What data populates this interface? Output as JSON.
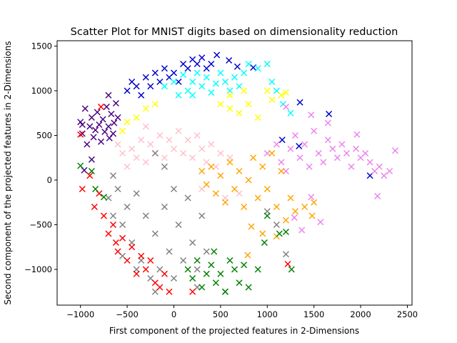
{
  "chart_data": {
    "type": "scatter",
    "title": "Scatter Plot for MNIST digits based on dimensionality reduction",
    "xlabel": "First component of the projected features in 2-Dimensions",
    "ylabel": "Second component of the projected features in 2-Dimensions",
    "xlim": [
      -1250,
      2550
    ],
    "ylim": [
      -1400,
      1560
    ],
    "xticks": [
      -1000,
      -500,
      0,
      500,
      1000,
      1500,
      2000,
      2500
    ],
    "xtick_labels": [
      "−1000",
      "−500",
      "0",
      "500",
      "1000",
      "1500",
      "2000",
      "2500"
    ],
    "yticks": [
      -1000,
      -500,
      0,
      500,
      1000,
      1500
    ],
    "ytick_labels": [
      "−1000",
      "−500",
      "0",
      "500",
      "1000",
      "1500"
    ],
    "grid": false,
    "legend": "none",
    "marker": "x",
    "series": [
      {
        "color": "#4b0082",
        "points": [
          [
            -1000,
            650
          ],
          [
            -980,
            520
          ],
          [
            -950,
            800
          ],
          [
            -930,
            400
          ],
          [
            -900,
            600
          ],
          [
            -880,
            700
          ],
          [
            -860,
            480
          ],
          [
            -840,
            560
          ],
          [
            -820,
            760
          ],
          [
            -800,
            620
          ],
          [
            -780,
            430
          ],
          [
            -760,
            680
          ],
          [
            -740,
            540
          ],
          [
            -720,
            820
          ],
          [
            -700,
            600
          ],
          [
            -690,
            470
          ],
          [
            -670,
            740
          ],
          [
            -650,
            520
          ],
          [
            -640,
            640
          ],
          [
            -620,
            860
          ],
          [
            -600,
            700
          ],
          [
            -960,
            110
          ],
          [
            -980,
            620
          ],
          [
            -880,
            230
          ],
          [
            -700,
            950
          ]
        ]
      },
      {
        "color": "#0000cd",
        "points": [
          [
            -500,
            1000
          ],
          [
            -450,
            1100
          ],
          [
            -400,
            1050
          ],
          [
            -350,
            950
          ],
          [
            -300,
            1150
          ],
          [
            -250,
            1050
          ],
          [
            -200,
            1200
          ],
          [
            -150,
            1100
          ],
          [
            -100,
            1250
          ],
          [
            -50,
            1150
          ],
          [
            0,
            1200
          ],
          [
            50,
            1100
          ],
          [
            100,
            1300
          ],
          [
            150,
            1250
          ],
          [
            200,
            1350
          ],
          [
            250,
            1300
          ],
          [
            300,
            1370
          ],
          [
            350,
            1250
          ],
          [
            400,
            1300
          ],
          [
            460,
            1400
          ],
          [
            590,
            1340
          ],
          [
            680,
            1270
          ],
          [
            850,
            1260
          ],
          [
            1350,
            870
          ],
          [
            1660,
            740
          ],
          [
            2100,
            50
          ],
          [
            1340,
            380
          ],
          [
            1160,
            450
          ]
        ]
      },
      {
        "color": "#00ffff",
        "points": [
          [
            -100,
            1050
          ],
          [
            0,
            1100
          ],
          [
            100,
            1180
          ],
          [
            150,
            1000
          ],
          [
            200,
            1100
          ],
          [
            250,
            1200
          ],
          [
            300,
            1050
          ],
          [
            350,
            1150
          ],
          [
            400,
            980
          ],
          [
            450,
            1080
          ],
          [
            500,
            1200
          ],
          [
            550,
            1100
          ],
          [
            600,
            1000
          ],
          [
            650,
            1150
          ],
          [
            700,
            1050
          ],
          [
            750,
            1200
          ],
          [
            800,
            1300
          ],
          [
            900,
            1250
          ],
          [
            1000,
            1300
          ],
          [
            1050,
            1100
          ],
          [
            1100,
            1000
          ],
          [
            1170,
            850
          ],
          [
            1250,
            750
          ],
          [
            200,
            950
          ],
          [
            50,
            950
          ]
        ]
      },
      {
        "color": "#ffff00",
        "points": [
          [
            -550,
            550
          ],
          [
            -500,
            650
          ],
          [
            -400,
            700
          ],
          [
            -300,
            800
          ],
          [
            -200,
            850
          ],
          [
            500,
            850
          ],
          [
            600,
            800
          ],
          [
            700,
            750
          ],
          [
            800,
            850
          ],
          [
            900,
            700
          ],
          [
            1000,
            1000
          ],
          [
            1050,
            900
          ],
          [
            1150,
            950
          ],
          [
            1200,
            980
          ],
          [
            750,
            1000
          ],
          [
            600,
            950
          ]
        ]
      },
      {
        "color": "#ee82ee",
        "points": [
          [
            1000,
            300
          ],
          [
            1100,
            400
          ],
          [
            1150,
            200
          ],
          [
            1200,
            100
          ],
          [
            1250,
            350
          ],
          [
            1300,
            500
          ],
          [
            1350,
            250
          ],
          [
            1400,
            400
          ],
          [
            1450,
            150
          ],
          [
            1500,
            550
          ],
          [
            1550,
            300
          ],
          [
            1600,
            200
          ],
          [
            1650,
            450
          ],
          [
            1700,
            350
          ],
          [
            1750,
            250
          ],
          [
            1800,
            400
          ],
          [
            1850,
            300
          ],
          [
            1900,
            150
          ],
          [
            1950,
            350
          ],
          [
            2000,
            250
          ],
          [
            2050,
            300
          ],
          [
            2100,
            200
          ],
          [
            2150,
            100
          ],
          [
            2200,
            150
          ],
          [
            2250,
            50
          ],
          [
            2370,
            330
          ],
          [
            2310,
            100
          ],
          [
            2180,
            -180
          ],
          [
            1470,
            -190
          ],
          [
            1370,
            -560
          ],
          [
            1570,
            -470
          ],
          [
            1290,
            -420
          ],
          [
            1650,
            640
          ],
          [
            1960,
            510
          ],
          [
            1470,
            730
          ],
          [
            1200,
            820
          ]
        ]
      },
      {
        "color": "#ffc0cb",
        "points": [
          [
            -600,
            400
          ],
          [
            -550,
            300
          ],
          [
            -500,
            150
          ],
          [
            -450,
            350
          ],
          [
            -400,
            250
          ],
          [
            -350,
            450
          ],
          [
            -300,
            200
          ],
          [
            -250,
            400
          ],
          [
            -200,
            300
          ],
          [
            -150,
            500
          ],
          [
            -100,
            250
          ],
          [
            -50,
            450
          ],
          [
            0,
            350
          ],
          [
            50,
            550
          ],
          [
            100,
            300
          ],
          [
            150,
            450
          ],
          [
            200,
            250
          ],
          [
            250,
            500
          ],
          [
            300,
            350
          ],
          [
            350,
            200
          ],
          [
            400,
            400
          ],
          [
            450,
            150
          ],
          [
            500,
            300
          ],
          [
            600,
            250
          ],
          [
            700,
            -150
          ],
          [
            550,
            -200
          ],
          [
            300,
            -100
          ],
          [
            -300,
            600
          ]
        ]
      },
      {
        "color": "#ffa500",
        "points": [
          [
            300,
            100
          ],
          [
            350,
            -50
          ],
          [
            400,
            150
          ],
          [
            450,
            -150
          ],
          [
            500,
            50
          ],
          [
            550,
            -250
          ],
          [
            600,
            200
          ],
          [
            650,
            -100
          ],
          [
            700,
            100
          ],
          [
            750,
            -300
          ],
          [
            800,
            0
          ],
          [
            850,
            250
          ],
          [
            900,
            -200
          ],
          [
            950,
            150
          ],
          [
            1000,
            -100
          ],
          [
            1050,
            300
          ],
          [
            1100,
            -300
          ],
          [
            1150,
            100
          ],
          [
            1200,
            -450
          ],
          [
            1250,
            -200
          ],
          [
            1300,
            -350
          ],
          [
            1400,
            -300
          ],
          [
            1480,
            -400
          ],
          [
            1500,
            -250
          ],
          [
            950,
            -600
          ],
          [
            1100,
            -630
          ],
          [
            790,
            -840
          ],
          [
            830,
            -520
          ]
        ]
      },
      {
        "color": "#808080",
        "points": [
          [
            -700,
            -200
          ],
          [
            -650,
            -400
          ],
          [
            -600,
            -100
          ],
          [
            -550,
            -500
          ],
          [
            -500,
            -300
          ],
          [
            -450,
            -700
          ],
          [
            -400,
            -150
          ],
          [
            -350,
            -900
          ],
          [
            -300,
            -400
          ],
          [
            -250,
            -1100
          ],
          [
            -200,
            -600
          ],
          [
            -150,
            -1000
          ],
          [
            -100,
            -300
          ],
          [
            -50,
            -800
          ],
          [
            0,
            -1100
          ],
          [
            50,
            -500
          ],
          [
            100,
            -900
          ],
          [
            150,
            -200
          ],
          [
            200,
            -700
          ],
          [
            250,
            -1000
          ],
          [
            300,
            -400
          ],
          [
            350,
            -800
          ],
          [
            -400,
            -1000
          ],
          [
            -550,
            -850
          ],
          [
            -200,
            -1250
          ],
          [
            250,
            -1200
          ],
          [
            1000,
            -350
          ],
          [
            1100,
            -500
          ],
          [
            1200,
            -830
          ],
          [
            -200,
            300
          ],
          [
            -100,
            150
          ],
          [
            0,
            -100
          ],
          [
            -650,
            50
          ]
        ]
      },
      {
        "color": "#ff0000",
        "points": [
          [
            -980,
            -100
          ],
          [
            -900,
            50
          ],
          [
            -850,
            -300
          ],
          [
            -800,
            -150
          ],
          [
            -750,
            -400
          ],
          [
            -700,
            -600
          ],
          [
            -650,
            -500
          ],
          [
            -600,
            -800
          ],
          [
            -550,
            -650
          ],
          [
            -500,
            -900
          ],
          [
            -450,
            -750
          ],
          [
            -400,
            -1050
          ],
          [
            -350,
            -850
          ],
          [
            -300,
            -1000
          ],
          [
            -250,
            -900
          ],
          [
            -200,
            -1150
          ],
          [
            -150,
            -1200
          ],
          [
            -100,
            -1050
          ],
          [
            -50,
            -1250
          ],
          [
            200,
            -1250
          ],
          [
            1220,
            -940
          ],
          [
            -780,
            820
          ],
          [
            -1000,
            510
          ],
          [
            -620,
            -700
          ]
        ]
      },
      {
        "color": "#008000",
        "points": [
          [
            150,
            -1000
          ],
          [
            200,
            -1100
          ],
          [
            250,
            -900
          ],
          [
            300,
            -1200
          ],
          [
            350,
            -1050
          ],
          [
            400,
            -950
          ],
          [
            450,
            -1150
          ],
          [
            500,
            -1050
          ],
          [
            550,
            -1250
          ],
          [
            600,
            -900
          ],
          [
            650,
            -1000
          ],
          [
            700,
            -1150
          ],
          [
            750,
            -950
          ],
          [
            800,
            -1200
          ],
          [
            900,
            -1000
          ],
          [
            970,
            -700
          ],
          [
            1000,
            -400
          ],
          [
            1130,
            -600
          ],
          [
            1260,
            -1000
          ],
          [
            1200,
            -580
          ],
          [
            -1000,
            160
          ],
          [
            -880,
            100
          ],
          [
            -840,
            -100
          ],
          [
            -750,
            -190
          ],
          [
            430,
            -800
          ],
          [
            550,
            -1250
          ]
        ]
      }
    ]
  }
}
